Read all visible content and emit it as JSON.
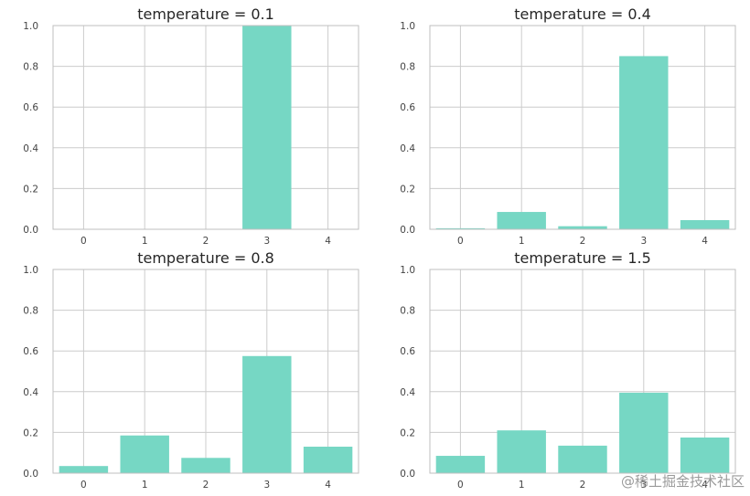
{
  "chart_data": [
    {
      "type": "bar",
      "title": "temperature = 0.1",
      "categories": [
        "0",
        "1",
        "2",
        "3",
        "4"
      ],
      "values": [
        0.0,
        0.0,
        0.0,
        1.0,
        0.0
      ],
      "ylim": [
        0,
        1.0
      ],
      "yticks": [
        "0.0",
        "0.2",
        "0.4",
        "0.6",
        "0.8",
        "1.0"
      ],
      "grid": true,
      "color": "#76d7c4"
    },
    {
      "type": "bar",
      "title": "temperature = 0.4",
      "categories": [
        "0",
        "1",
        "2",
        "3",
        "4"
      ],
      "values": [
        0.005,
        0.085,
        0.015,
        0.85,
        0.045
      ],
      "ylim": [
        0,
        1.0
      ],
      "yticks": [
        "0.0",
        "0.2",
        "0.4",
        "0.6",
        "0.8",
        "1.0"
      ],
      "grid": true,
      "color": "#76d7c4"
    },
    {
      "type": "bar",
      "title": "temperature = 0.8",
      "categories": [
        "0",
        "1",
        "2",
        "3",
        "4"
      ],
      "values": [
        0.035,
        0.185,
        0.075,
        0.575,
        0.13
      ],
      "ylim": [
        0,
        1.0
      ],
      "yticks": [
        "0.0",
        "0.2",
        "0.4",
        "0.6",
        "0.8",
        "1.0"
      ],
      "grid": true,
      "color": "#76d7c4"
    },
    {
      "type": "bar",
      "title": "temperature = 1.5",
      "categories": [
        "0",
        "1",
        "2",
        "3",
        "4"
      ],
      "values": [
        0.085,
        0.21,
        0.135,
        0.395,
        0.175
      ],
      "ylim": [
        0,
        1.0
      ],
      "yticks": [
        "0.0",
        "0.2",
        "0.4",
        "0.6",
        "0.8",
        "1.0"
      ],
      "grid": true,
      "color": "#76d7c4"
    }
  ],
  "watermark": "@稀土掘金技术社区"
}
